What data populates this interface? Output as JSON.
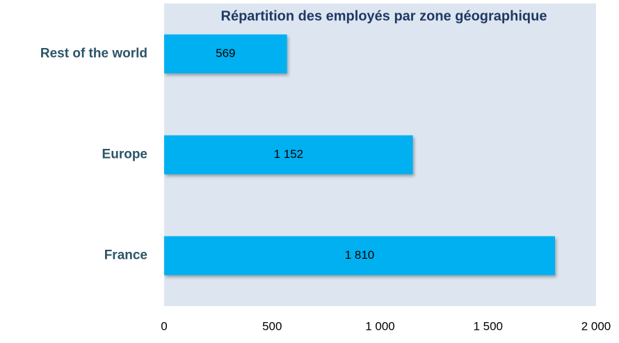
{
  "chart_data": {
    "type": "bar",
    "orientation": "horizontal",
    "title": "Répartition des employés par zone géographique",
    "categories": [
      "Rest of the world",
      "Europe",
      "France"
    ],
    "values": [
      569,
      1152,
      1810
    ],
    "value_labels": [
      "569",
      "1 152",
      "1 810"
    ],
    "color": "#00b0f0",
    "xlim": [
      0,
      2000
    ],
    "xticks": [
      0,
      500,
      {
        "value": 1000,
        "label": "1 000"
      },
      {
        "value": 1500,
        "label": "1 500"
      },
      {
        "value": 2000,
        "label": "2 000"
      }
    ],
    "grid": false
  }
}
